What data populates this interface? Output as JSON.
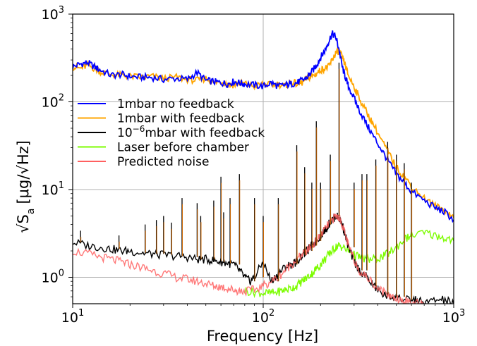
{
  "chart_data": {
    "type": "line",
    "xscale": "log",
    "yscale": "log",
    "xlim": [
      10,
      1000
    ],
    "ylim": [
      0.5,
      1000
    ],
    "grid": true,
    "xlabel": "Frequency [Hz]",
    "ylabel": "√S_a [μg/√Hz]",
    "ylabel_parts": {
      "sqrt": "√",
      "s": "S",
      "sub": "a",
      "unit": "[μg/√Hz]"
    },
    "x_ticks": [
      {
        "value": 10,
        "base": "10",
        "exp": "1"
      },
      {
        "value": 100,
        "base": "10",
        "exp": "2"
      },
      {
        "value": 1000,
        "base": "10",
        "exp": "3"
      }
    ],
    "y_ticks": [
      {
        "value": 1,
        "base": "10",
        "exp": "0"
      },
      {
        "value": 10,
        "base": "10",
        "exp": "1"
      },
      {
        "value": 100,
        "base": "10",
        "exp": "2"
      },
      {
        "value": 1000,
        "base": "10",
        "exp": "3"
      }
    ],
    "legend": {
      "placement": "center-left",
      "entries": [
        {
          "label": "1mbar no feedback",
          "color": "#0000ff"
        },
        {
          "label": "1mbar with feedback",
          "color": "#ffa500"
        },
        {
          "label": "10⁻⁶mbar with feedback",
          "label_base": "10",
          "label_exp": "−6",
          "label_rest": "mbar with feedback",
          "color": "#000000"
        },
        {
          "label": "Laser before chamber",
          "color": "#7cfc00"
        },
        {
          "label": "Predicted noise",
          "color": "#ff6060"
        }
      ]
    },
    "series": [
      {
        "name": "1mbar no feedback",
        "color": "#0000ff",
        "x": [
          10,
          11,
          12,
          13,
          14,
          16,
          18,
          20,
          23,
          26,
          30,
          35,
          40,
          45,
          50,
          55,
          60,
          65,
          70,
          75,
          80,
          90,
          100,
          110,
          120,
          130,
          140,
          150,
          160,
          170,
          180,
          190,
          200,
          210,
          220,
          230,
          240,
          250,
          260,
          270,
          280,
          300,
          320,
          350,
          380,
          420,
          460,
          500,
          550,
          600,
          700,
          800,
          900,
          1000
        ],
        "y": [
          250,
          270,
          280,
          250,
          230,
          200,
          205,
          195,
          190,
          190,
          180,
          185,
          180,
          215,
          175,
          170,
          165,
          160,
          170,
          165,
          160,
          155,
          150,
          165,
          150,
          155,
          160,
          165,
          175,
          190,
          220,
          260,
          320,
          380,
          480,
          600,
          550,
          400,
          250,
          190,
          150,
          110,
          80,
          55,
          40,
          28,
          20,
          15,
          12,
          9.5,
          7.5,
          6.2,
          5.5,
          4.5
        ]
      },
      {
        "name": "1mbar with feedback",
        "color": "#ffa500",
        "x": [
          10,
          11,
          12,
          13,
          14,
          16,
          18,
          20,
          23,
          26,
          30,
          35,
          40,
          45,
          50,
          55,
          60,
          65,
          70,
          75,
          80,
          90,
          100,
          110,
          120,
          130,
          140,
          150,
          160,
          170,
          180,
          190,
          200,
          210,
          220,
          230,
          240,
          250,
          260,
          270,
          280,
          300,
          320,
          350,
          380,
          420,
          460,
          500,
          550,
          600,
          700,
          800,
          900,
          1000
        ],
        "y": [
          250,
          240,
          260,
          240,
          220,
          205,
          200,
          195,
          190,
          195,
          185,
          190,
          180,
          175,
          185,
          165,
          170,
          160,
          155,
          165,
          160,
          150,
          160,
          155,
          160,
          150,
          170,
          160,
          165,
          185,
          195,
          210,
          230,
          240,
          250,
          300,
          360,
          380,
          320,
          260,
          200,
          150,
          110,
          75,
          55,
          36,
          25,
          18,
          14,
          11,
          8,
          6.5,
          5.8,
          4.8
        ]
      },
      {
        "name": "10⁻⁶mbar with feedback",
        "color": "#000000",
        "x": [
          10,
          12,
          14,
          16,
          18,
          20,
          23,
          26,
          30,
          35,
          40,
          45,
          50,
          55,
          60,
          65,
          70,
          75,
          80,
          85,
          90,
          100,
          110,
          120,
          130,
          140,
          150,
          160,
          170,
          180,
          190,
          200,
          210,
          220,
          230,
          240,
          250,
          260,
          270,
          280,
          300,
          320,
          350,
          380,
          420,
          460,
          500,
          550,
          600,
          650,
          700,
          800,
          900,
          1000
        ],
        "y": [
          2.5,
          2.3,
          2.2,
          2.1,
          2.0,
          2.0,
          1.9,
          1.85,
          1.8,
          1.75,
          1.7,
          1.6,
          1.6,
          1.55,
          1.5,
          1.45,
          1.4,
          1.2,
          1.0,
          0.9,
          1.0,
          1.5,
          0.9,
          1.1,
          1.3,
          1.4,
          1.5,
          1.8,
          2.0,
          2.3,
          2.6,
          3.0,
          3.4,
          4.0,
          4.5,
          5.0,
          4.8,
          4.0,
          3.0,
          2.2,
          1.5,
          1.2,
          1.0,
          0.8,
          0.65,
          0.6,
          0.6,
          0.55,
          0.55,
          0.55,
          0.5,
          0.55,
          0.55,
          0.5
        ]
      },
      {
        "name": "Laser before chamber",
        "color": "#7cfc00",
        "x": [
          80,
          90,
          100,
          110,
          120,
          130,
          140,
          150,
          160,
          170,
          180,
          190,
          200,
          210,
          220,
          230,
          240,
          250,
          260,
          280,
          300,
          320,
          350,
          380,
          420,
          460,
          500,
          550,
          600,
          700,
          800,
          900,
          1000
        ],
        "y": [
          0.7,
          0.68,
          0.66,
          0.66,
          0.68,
          0.72,
          0.75,
          0.8,
          0.9,
          1.0,
          1.1,
          1.25,
          1.4,
          1.6,
          1.8,
          2.0,
          2.2,
          2.3,
          2.2,
          2.0,
          1.8,
          1.7,
          1.6,
          1.6,
          1.7,
          1.9,
          2.2,
          2.7,
          3.0,
          3.2,
          3.0,
          2.8,
          2.6
        ]
      },
      {
        "name": "Predicted noise",
        "color": "#ff6060",
        "x": [
          10,
          12,
          14,
          16,
          18,
          20,
          23,
          26,
          30,
          35,
          40,
          45,
          50,
          55,
          60,
          65,
          70,
          75,
          80,
          90,
          100,
          110,
          120,
          130,
          140,
          150,
          160,
          170,
          180,
          190,
          200,
          210,
          220,
          230,
          240,
          250,
          260,
          270,
          280,
          300,
          320,
          350,
          380,
          420,
          460,
          500,
          550,
          600,
          650,
          700
        ],
        "y": [
          2.0,
          1.85,
          1.7,
          1.6,
          1.5,
          1.4,
          1.3,
          1.2,
          1.1,
          1.0,
          0.95,
          0.9,
          0.85,
          0.8,
          0.78,
          0.75,
          0.72,
          0.7,
          0.7,
          0.72,
          0.8,
          0.9,
          1.0,
          1.2,
          1.4,
          1.6,
          1.8,
          2.0,
          2.3,
          2.6,
          3.0,
          3.5,
          4.0,
          4.5,
          5.0,
          4.8,
          4.0,
          3.0,
          2.3,
          1.6,
          1.2,
          1.0,
          0.85,
          0.7,
          0.62,
          0.58,
          0.55,
          0.52,
          0.5,
          0.5
        ]
      }
    ],
    "peaks": [
      {
        "x": 11,
        "y": 3.4
      },
      {
        "x": 17.5,
        "y": 3.0
      },
      {
        "x": 24,
        "y": 4.0
      },
      {
        "x": 27.5,
        "y": 4.5
      },
      {
        "x": 30,
        "y": 5.0
      },
      {
        "x": 33,
        "y": 4.2
      },
      {
        "x": 37.5,
        "y": 8.0
      },
      {
        "x": 45,
        "y": 7.0
      },
      {
        "x": 47,
        "y": 5.0
      },
      {
        "x": 55,
        "y": 7.5
      },
      {
        "x": 60,
        "y": 14.0
      },
      {
        "x": 62,
        "y": 5.5
      },
      {
        "x": 67,
        "y": 8.0
      },
      {
        "x": 75,
        "y": 15.0
      },
      {
        "x": 90,
        "y": 8.0
      },
      {
        "x": 100,
        "y": 5.0
      },
      {
        "x": 120,
        "y": 8.0
      },
      {
        "x": 150,
        "y": 32.0
      },
      {
        "x": 165,
        "y": 18.0
      },
      {
        "x": 180,
        "y": 12.0
      },
      {
        "x": 190,
        "y": 60.0
      },
      {
        "x": 200,
        "y": 12.0
      },
      {
        "x": 225,
        "y": 25.0
      },
      {
        "x": 250,
        "y": 280.0
      },
      {
        "x": 300,
        "y": 12.0
      },
      {
        "x": 330,
        "y": 15.0
      },
      {
        "x": 350,
        "y": 15.0
      },
      {
        "x": 390,
        "y": 22.0
      },
      {
        "x": 450,
        "y": 35.0
      },
      {
        "x": 500,
        "y": 25.0
      },
      {
        "x": 550,
        "y": 20.0
      },
      {
        "x": 600,
        "y": 12.0
      }
    ]
  }
}
